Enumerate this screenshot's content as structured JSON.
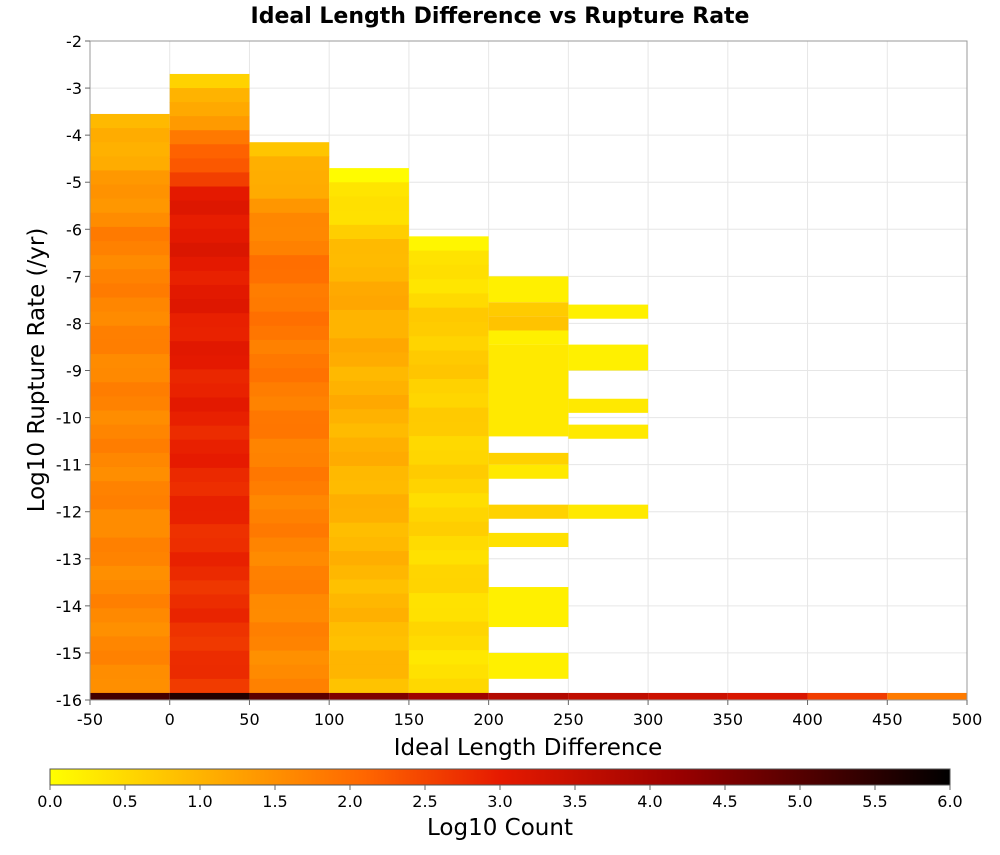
{
  "chart_data": {
    "type": "heatmap",
    "title": "Ideal Length Difference vs Rupture Rate",
    "xlabel": "Ideal Length Difference",
    "ylabel": "Log10 Rupture Rate (/yr)",
    "xlim": [
      -50,
      500
    ],
    "ylim": [
      -16,
      -2
    ],
    "x_ticks": [
      "-50",
      "0",
      "50",
      "100",
      "150",
      "200",
      "250",
      "300",
      "350",
      "400",
      "450",
      "500"
    ],
    "y_ticks": [
      "-2",
      "-3",
      "-4",
      "-5",
      "-6",
      "-7",
      "-8",
      "-9",
      "-10",
      "-11",
      "-12",
      "-13",
      "-14",
      "-15",
      "-16"
    ],
    "bin_width_x": 50,
    "bin_height_y": 0.3,
    "grid": true,
    "colorscale": {
      "label": "Log10 Count",
      "range": [
        0.0,
        6.0
      ],
      "ticks": [
        "0.0",
        "0.5",
        "1.0",
        "1.5",
        "2.0",
        "2.5",
        "3.0",
        "3.5",
        "4.0",
        "4.5",
        "5.0",
        "5.5",
        "6.0"
      ],
      "colors": [
        "#ffff00",
        "#ffa500",
        "#ff6600",
        "#e61a00",
        "#990000",
        "#000000"
      ]
    },
    "columns": [
      {
        "x_start": -50,
        "x_end": 0,
        "y_top": -3.55,
        "y_bottom": -15.85,
        "z_top": 0.9,
        "z_mid": 1.7,
        "z_bottom": 1.6
      },
      {
        "x_start": 0,
        "x_end": 50,
        "y_top": -2.7,
        "y_bottom": -15.85,
        "z_top": 0.6,
        "z_mid": 3.1,
        "z_bottom": 2.7
      },
      {
        "x_start": 50,
        "x_end": 100,
        "y_top": -4.15,
        "y_bottom": -15.85,
        "z_top": 0.8,
        "z_mid": 1.9,
        "z_bottom": 1.6
      },
      {
        "x_start": 100,
        "x_end": 150,
        "y_top": -4.7,
        "y_bottom": -15.85,
        "z_top": 0.1,
        "z_mid": 1.1,
        "z_bottom": 0.9
      },
      {
        "x_start": 150,
        "x_end": 200,
        "y_top": -6.15,
        "y_bottom": -15.85,
        "z_top": 0.2,
        "z_mid": 0.7,
        "z_bottom": 0.4
      }
    ],
    "sparse_cells": [
      {
        "x": 200,
        "y_top": -7.0,
        "y_bottom": -7.55,
        "z": 0.2
      },
      {
        "x": 200,
        "y_top": -7.55,
        "y_bottom": -7.85,
        "z": 0.7
      },
      {
        "x": 200,
        "y_top": -7.85,
        "y_bottom": -8.15,
        "z": 0.8
      },
      {
        "x": 200,
        "y_top": -8.15,
        "y_bottom": -8.45,
        "z": 0.2
      },
      {
        "x": 200,
        "y_top": -8.45,
        "y_bottom": -10.4,
        "z": 0.3
      },
      {
        "x": 200,
        "y_top": -10.75,
        "y_bottom": -11.0,
        "z": 0.6
      },
      {
        "x": 200,
        "y_top": -11.0,
        "y_bottom": -11.3,
        "z": 0.3
      },
      {
        "x": 200,
        "y_top": -11.85,
        "y_bottom": -12.15,
        "z": 0.6
      },
      {
        "x": 200,
        "y_top": -12.45,
        "y_bottom": -12.75,
        "z": 0.4
      },
      {
        "x": 200,
        "y_top": -13.6,
        "y_bottom": -14.45,
        "z": 0.2
      },
      {
        "x": 200,
        "y_top": -15.0,
        "y_bottom": -15.55,
        "z": 0.2
      },
      {
        "x": 250,
        "y_top": -7.6,
        "y_bottom": -7.9,
        "z": 0.2
      },
      {
        "x": 250,
        "y_top": -8.45,
        "y_bottom": -9.0,
        "z": 0.2
      },
      {
        "x": 250,
        "y_top": -9.6,
        "y_bottom": -9.9,
        "z": 0.3
      },
      {
        "x": 250,
        "y_top": -10.15,
        "y_bottom": -10.45,
        "z": 0.3
      },
      {
        "x": 250,
        "y_top": -11.85,
        "y_bottom": -12.15,
        "z": 0.3
      }
    ],
    "bottom_row": {
      "y_top": -15.85,
      "y_bottom": -16.0,
      "x": [
        -50,
        0,
        50,
        100,
        150,
        200,
        250,
        300,
        350,
        400,
        450
      ],
      "z": [
        5.2,
        5.6,
        4.9,
        4.5,
        4.1,
        3.8,
        3.6,
        3.4,
        3.2,
        2.6,
        1.8
      ]
    }
  }
}
